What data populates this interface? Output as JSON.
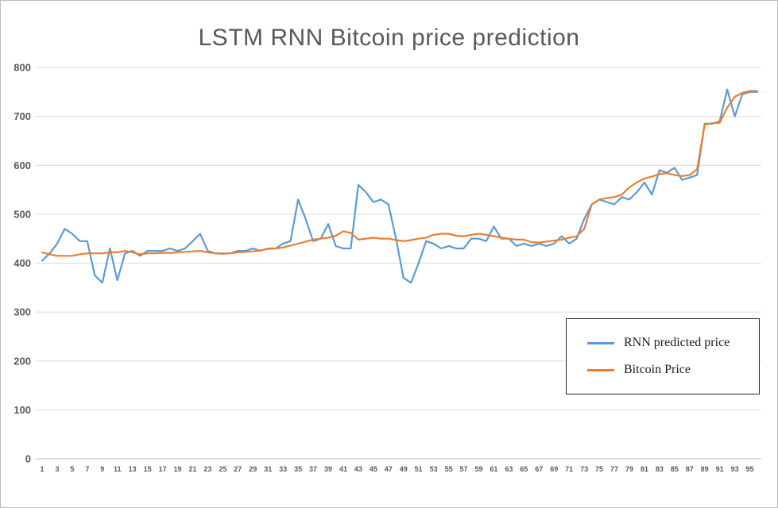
{
  "title": "LSTM RNN Bitcoin price prediction",
  "legend": {
    "items": [
      {
        "label": "RNN predicted price",
        "color": "#5B9BD5"
      },
      {
        "label": "Bitcoin Price",
        "color": "#ED7D31"
      }
    ]
  },
  "colors": {
    "title_text": "#595959",
    "tick_text": "#595959",
    "gridline": "#d9d9d9",
    "axis_line": "#bfbfbf"
  },
  "chart_data": {
    "type": "line",
    "title": "LSTM RNN Bitcoin price prediction",
    "xlabel": "",
    "ylabel": "",
    "ylim": [
      0,
      800
    ],
    "ytick_interval": 100,
    "grid": true,
    "legend_position": "center-right inside plot, boxed",
    "x_start": 1,
    "x_ticks": [
      1,
      3,
      5,
      7,
      9,
      11,
      13,
      15,
      17,
      19,
      21,
      23,
      25,
      27,
      29,
      31,
      33,
      35,
      37,
      39,
      41,
      43,
      45,
      47,
      49,
      51,
      53,
      55,
      57,
      59,
      61,
      63,
      65,
      67,
      69,
      71,
      73,
      75,
      77,
      79,
      81,
      83,
      85,
      87,
      89,
      91,
      93,
      95
    ],
    "series": [
      {
        "name": "RNN predicted price",
        "color": "#5B9BD5",
        "values": [
          405,
          420,
          440,
          470,
          460,
          445,
          445,
          375,
          360,
          430,
          365,
          420,
          425,
          415,
          425,
          425,
          425,
          430,
          425,
          430,
          445,
          460,
          425,
          420,
          420,
          420,
          425,
          425,
          430,
          425,
          430,
          430,
          440,
          445,
          530,
          490,
          445,
          450,
          480,
          435,
          430,
          430,
          560,
          545,
          525,
          530,
          520,
          450,
          370,
          360,
          400,
          445,
          440,
          430,
          435,
          430,
          430,
          450,
          450,
          445,
          475,
          450,
          450,
          435,
          440,
          435,
          440,
          435,
          440,
          455,
          440,
          450,
          490,
          520,
          530,
          525,
          520,
          535,
          530,
          545,
          565,
          540,
          590,
          585,
          595,
          570,
          575,
          580,
          685,
          685,
          690,
          755,
          700,
          745,
          750,
          750
        ]
      },
      {
        "name": "Bitcoin Price",
        "color": "#ED7D31",
        "values": [
          422,
          418,
          415,
          415,
          415,
          418,
          420,
          420,
          420,
          422,
          422,
          425,
          422,
          418,
          420,
          420,
          421,
          421,
          422,
          423,
          424,
          425,
          422,
          420,
          419,
          420,
          422,
          423,
          424,
          426,
          429,
          430,
          432,
          436,
          440,
          444,
          448,
          450,
          452,
          456,
          465,
          462,
          448,
          450,
          452,
          450,
          450,
          447,
          445,
          447,
          450,
          452,
          458,
          460,
          460,
          456,
          455,
          458,
          460,
          458,
          455,
          452,
          450,
          448,
          448,
          443,
          442,
          444,
          446,
          448,
          452,
          455,
          470,
          520,
          530,
          533,
          535,
          540,
          555,
          565,
          573,
          577,
          582,
          584,
          580,
          578,
          580,
          592,
          683,
          686,
          687,
          718,
          740,
          748,
          752,
          752
        ]
      }
    ]
  }
}
